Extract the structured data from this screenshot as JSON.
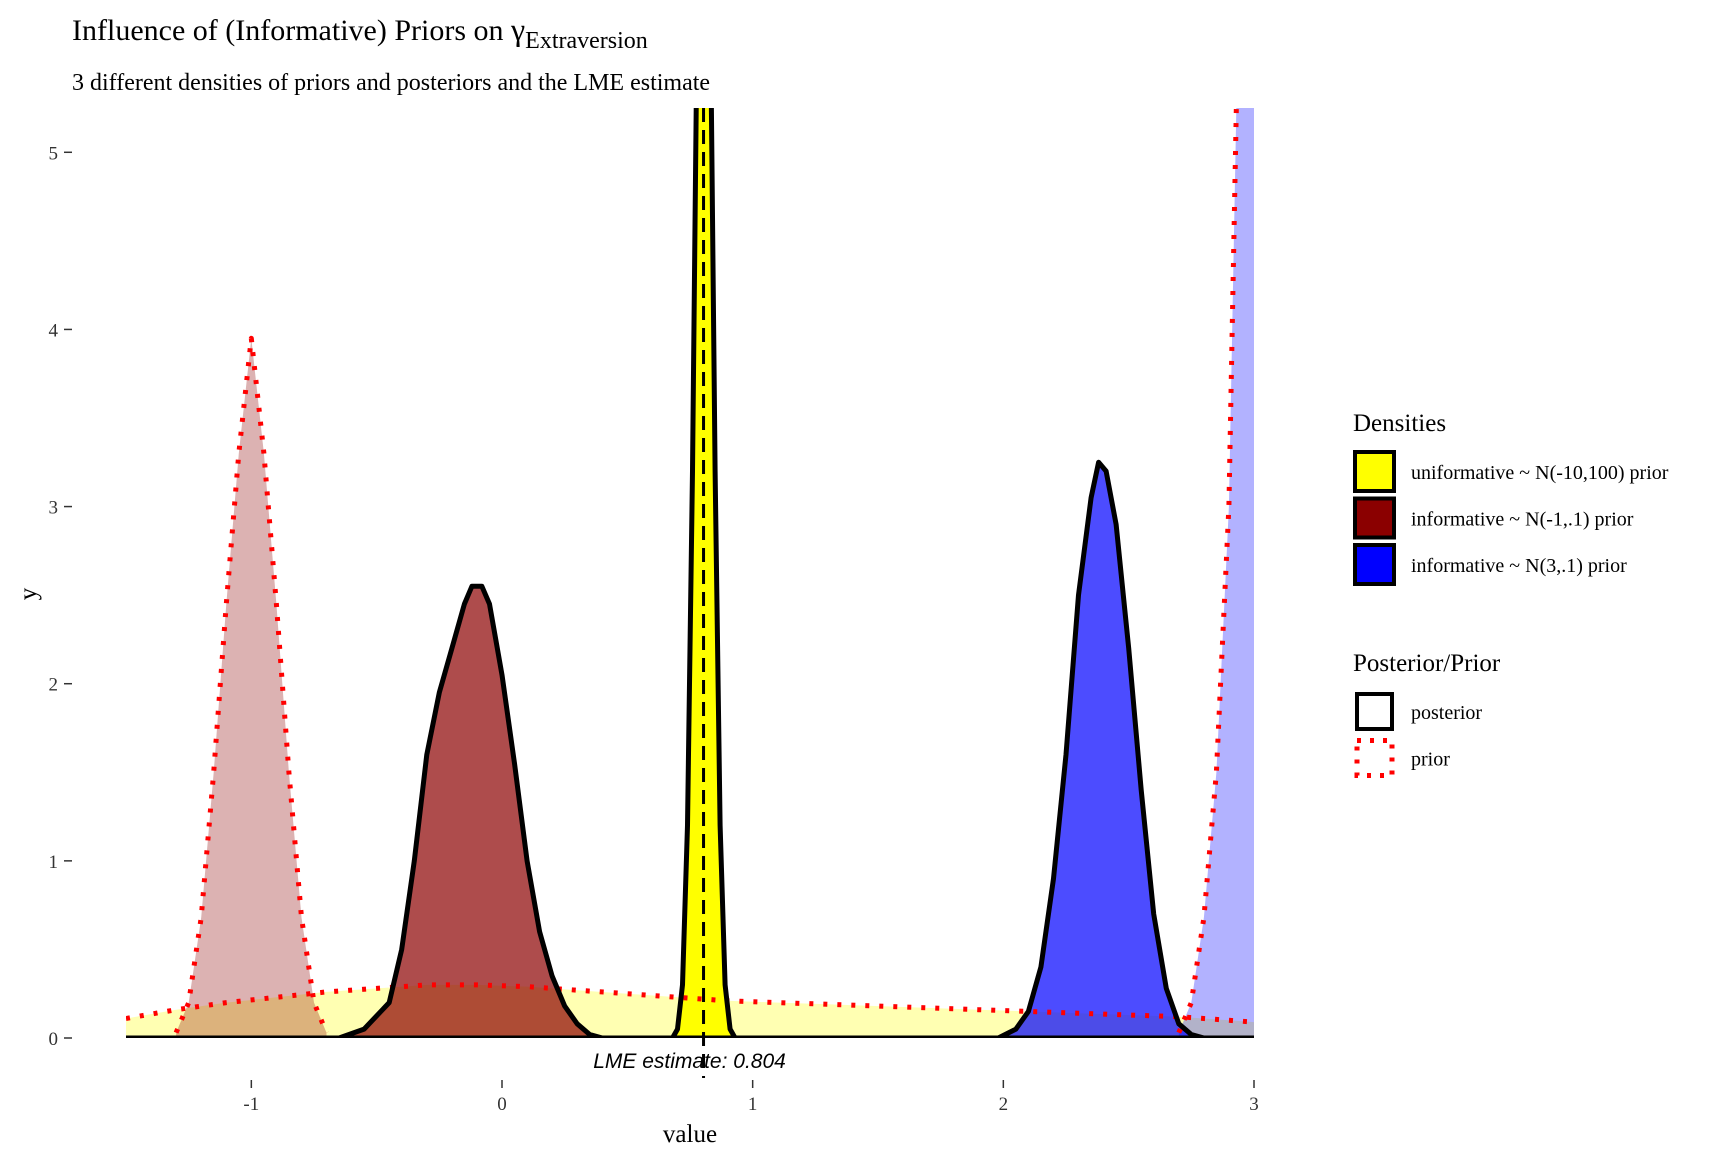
{
  "chart_data": {
    "type": "area",
    "title": "Influence of (Informative) Priors on ",
    "title_symbol": "γ",
    "title_subscript": "Extraversion",
    "subtitle": "3 different densities of priors and posteriors and the LME estimate",
    "xlabel": "value",
    "ylabel": "y",
    "xlim": [
      -1.5,
      3
    ],
    "ylim": [
      0,
      5.25
    ],
    "x_ticks": [
      -1,
      0,
      1,
      2,
      3
    ],
    "y_ticks": [
      0,
      1,
      2,
      3,
      4,
      5
    ],
    "grid": false,
    "legend_position": "right",
    "legend": {
      "densities": {
        "title": "Densities",
        "items": [
          {
            "label": "uniformative ~ N(-10,100) prior",
            "color": "#ffff00"
          },
          {
            "label": "informative ~ N(-1,.1) prior",
            "color": "#8b0000"
          },
          {
            "label": "informative ~ N(3,.1) prior",
            "color": "#0000ff"
          }
        ]
      },
      "posterior_prior": {
        "title": "Posterior/Prior",
        "items": [
          {
            "label": "posterior",
            "linestyle": "solid",
            "color": "#000000"
          },
          {
            "label": "prior",
            "linestyle": "dotted",
            "color": "#ff0000"
          }
        ]
      }
    },
    "annotation": {
      "text": "LME estimate:  0.804",
      "x": 0.804
    },
    "series": [
      {
        "group": "uniformative ~ N(-10,100) prior",
        "kind": "prior",
        "fill": "#ffff00",
        "alpha": 0.3,
        "points": [
          [
            -1.5,
            0.11
          ],
          [
            -1.3,
            0.16
          ],
          [
            -1.1,
            0.2
          ],
          [
            -0.9,
            0.23
          ],
          [
            -0.7,
            0.26
          ],
          [
            -0.5,
            0.28
          ],
          [
            -0.3,
            0.3
          ],
          [
            -0.1,
            0.3
          ],
          [
            0.1,
            0.29
          ],
          [
            0.3,
            0.27
          ],
          [
            0.5,
            0.25
          ],
          [
            0.7,
            0.23
          ],
          [
            0.9,
            0.21
          ],
          [
            1.1,
            0.2
          ],
          [
            1.3,
            0.19
          ],
          [
            1.5,
            0.18
          ],
          [
            1.7,
            0.17
          ],
          [
            1.9,
            0.16
          ],
          [
            2.1,
            0.15
          ],
          [
            2.3,
            0.14
          ],
          [
            2.5,
            0.13
          ],
          [
            2.7,
            0.12
          ],
          [
            2.9,
            0.1
          ],
          [
            3,
            0.09
          ]
        ]
      },
      {
        "group": "informative ~ N(-1,.1) prior",
        "kind": "prior",
        "fill": "#8b0000",
        "alpha": 0.3,
        "points": [
          [
            -1.3,
            0.03
          ],
          [
            -1.25,
            0.2
          ],
          [
            -1.2,
            0.68
          ],
          [
            -1.15,
            1.5
          ],
          [
            -1.1,
            2.45
          ],
          [
            -1.05,
            3.3
          ],
          [
            -1.0,
            3.95
          ],
          [
            -0.95,
            3.3
          ],
          [
            -0.9,
            2.45
          ],
          [
            -0.85,
            1.5
          ],
          [
            -0.8,
            0.68
          ],
          [
            -0.75,
            0.2
          ],
          [
            -0.7,
            0.03
          ]
        ]
      },
      {
        "group": "informative ~ N(3,.1) prior",
        "kind": "prior",
        "fill": "#0000ff",
        "alpha": 0.3,
        "points": [
          [
            2.7,
            0.03
          ],
          [
            2.75,
            0.2
          ],
          [
            2.8,
            0.68
          ],
          [
            2.85,
            1.5
          ],
          [
            2.9,
            3.0
          ],
          [
            2.93,
            5.3
          ],
          [
            3,
            5.3
          ]
        ]
      },
      {
        "group": "uniformative ~ N(-10,100) prior",
        "kind": "posterior",
        "fill": "#ffff00",
        "alpha": 1,
        "points": [
          [
            0.68,
            0
          ],
          [
            0.7,
            0.05
          ],
          [
            0.72,
            0.3
          ],
          [
            0.74,
            1.2
          ],
          [
            0.76,
            3.2
          ],
          [
            0.775,
            5.3
          ],
          [
            0.835,
            5.3
          ],
          [
            0.85,
            3.2
          ],
          [
            0.87,
            1.2
          ],
          [
            0.89,
            0.3
          ],
          [
            0.91,
            0.05
          ],
          [
            0.93,
            0
          ]
        ]
      },
      {
        "group": "informative ~ N(-1,.1) prior",
        "kind": "posterior",
        "fill": "#8b0000",
        "alpha": 0.7,
        "points": [
          [
            -0.65,
            0
          ],
          [
            -0.55,
            0.05
          ],
          [
            -0.45,
            0.2
          ],
          [
            -0.4,
            0.5
          ],
          [
            -0.35,
            1.0
          ],
          [
            -0.3,
            1.6
          ],
          [
            -0.25,
            1.95
          ],
          [
            -0.2,
            2.2
          ],
          [
            -0.15,
            2.45
          ],
          [
            -0.12,
            2.55
          ],
          [
            -0.08,
            2.55
          ],
          [
            -0.05,
            2.45
          ],
          [
            0.0,
            2.05
          ],
          [
            0.05,
            1.55
          ],
          [
            0.1,
            1.0
          ],
          [
            0.15,
            0.6
          ],
          [
            0.2,
            0.35
          ],
          [
            0.25,
            0.18
          ],
          [
            0.3,
            0.08
          ],
          [
            0.35,
            0.02
          ],
          [
            0.4,
            0
          ]
        ]
      },
      {
        "group": "informative ~ N(3,.1) prior",
        "kind": "posterior",
        "fill": "#0000ff",
        "alpha": 0.7,
        "points": [
          [
            1.98,
            0
          ],
          [
            2.05,
            0.05
          ],
          [
            2.1,
            0.15
          ],
          [
            2.15,
            0.4
          ],
          [
            2.2,
            0.9
          ],
          [
            2.25,
            1.6
          ],
          [
            2.3,
            2.5
          ],
          [
            2.35,
            3.05
          ],
          [
            2.38,
            3.25
          ],
          [
            2.41,
            3.2
          ],
          [
            2.45,
            2.9
          ],
          [
            2.5,
            2.2
          ],
          [
            2.55,
            1.4
          ],
          [
            2.6,
            0.7
          ],
          [
            2.65,
            0.28
          ],
          [
            2.7,
            0.08
          ],
          [
            2.75,
            0.02
          ],
          [
            2.8,
            0
          ]
        ]
      }
    ]
  }
}
